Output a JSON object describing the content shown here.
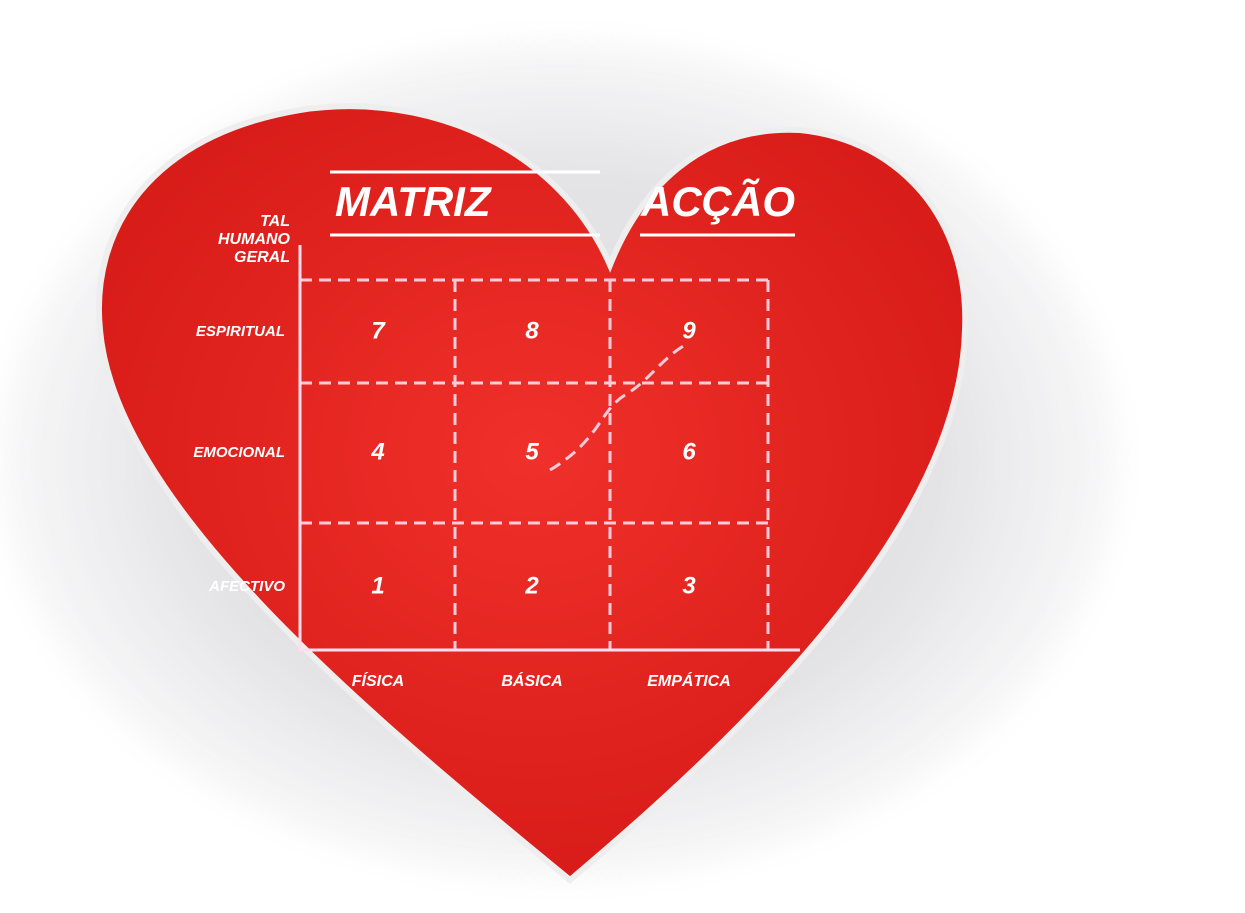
{
  "title": {
    "left": "MATRIZ",
    "right": "ACÇÃO"
  },
  "corner_label": [
    "TAL",
    "HUMANO",
    "GERAL"
  ],
  "rows": [
    "ESPIRITUAL",
    "EMOCIONAL",
    "AFECTIVO"
  ],
  "columns": [
    "FÍSICA",
    "BÁSICA",
    "EMPÁTICA"
  ],
  "cells": [
    [
      7,
      8,
      9
    ],
    [
      4,
      5,
      6
    ],
    [
      1,
      2,
      3
    ]
  ]
}
